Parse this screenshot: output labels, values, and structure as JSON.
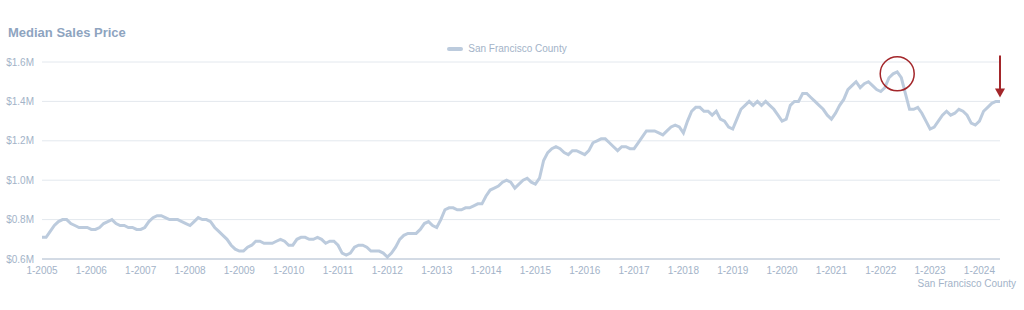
{
  "chart_data": {
    "type": "line",
    "title": "Median Sales Price",
    "x_label": "San Francisco County",
    "legend": "top",
    "grid": true,
    "categories": [
      "1-2005",
      null,
      null,
      null,
      null,
      null,
      null,
      null,
      null,
      null,
      null,
      null,
      "1-2006",
      null,
      null,
      null,
      null,
      null,
      null,
      null,
      null,
      null,
      null,
      null,
      "1-2007",
      null,
      null,
      null,
      null,
      null,
      null,
      null,
      null,
      null,
      null,
      null,
      "1-2008",
      null,
      null,
      null,
      null,
      null,
      null,
      null,
      null,
      null,
      null,
      null,
      "1-2009",
      null,
      null,
      null,
      null,
      null,
      null,
      null,
      null,
      null,
      null,
      null,
      "1-2010",
      null,
      null,
      null,
      null,
      null,
      null,
      null,
      null,
      null,
      null,
      null,
      "1-2011",
      null,
      null,
      null,
      null,
      null,
      null,
      null,
      null,
      null,
      null,
      null,
      "1-2012",
      null,
      null,
      null,
      null,
      null,
      null,
      null,
      null,
      null,
      null,
      null,
      "1-2013",
      null,
      null,
      null,
      null,
      null,
      null,
      null,
      null,
      null,
      null,
      null,
      "1-2014",
      null,
      null,
      null,
      null,
      null,
      null,
      null,
      null,
      null,
      null,
      null,
      "1-2015",
      null,
      null,
      null,
      null,
      null,
      null,
      null,
      null,
      null,
      null,
      null,
      "1-2016",
      null,
      null,
      null,
      null,
      null,
      null,
      null,
      null,
      null,
      null,
      null,
      "1-2017",
      null,
      null,
      null,
      null,
      null,
      null,
      null,
      null,
      null,
      null,
      null,
      "1-2018",
      null,
      null,
      null,
      null,
      null,
      null,
      null,
      null,
      null,
      null,
      null,
      "1-2019",
      null,
      null,
      null,
      null,
      null,
      null,
      null,
      null,
      null,
      null,
      null,
      "1-2020",
      null,
      null,
      null,
      null,
      null,
      null,
      null,
      null,
      null,
      null,
      null,
      "1-2021",
      null,
      null,
      null,
      null,
      null,
      null,
      null,
      null,
      null,
      null,
      null,
      "1-2022",
      null,
      null,
      null,
      null,
      null,
      null,
      null,
      null,
      null,
      null,
      null,
      "1-2023",
      null,
      null,
      null,
      null,
      null,
      null,
      null,
      null,
      null,
      null,
      null,
      "1-2024",
      null,
      null,
      null,
      null,
      null
    ],
    "series": [
      {
        "name": "San Francisco County",
        "color": "#bccbdd",
        "values": [
          0.71,
          0.71,
          0.74,
          0.77,
          0.79,
          0.8,
          0.8,
          0.78,
          0.77,
          0.76,
          0.76,
          0.76,
          0.75,
          0.75,
          0.76,
          0.78,
          0.79,
          0.8,
          0.78,
          0.77,
          0.77,
          0.76,
          0.76,
          0.75,
          0.75,
          0.76,
          0.79,
          0.81,
          0.82,
          0.82,
          0.81,
          0.8,
          0.8,
          0.8,
          0.79,
          0.78,
          0.77,
          0.79,
          0.81,
          0.8,
          0.8,
          0.79,
          0.76,
          0.74,
          0.72,
          0.7,
          0.67,
          0.65,
          0.64,
          0.64,
          0.66,
          0.67,
          0.69,
          0.69,
          0.68,
          0.68,
          0.68,
          0.69,
          0.7,
          0.69,
          0.67,
          0.67,
          0.7,
          0.71,
          0.71,
          0.7,
          0.7,
          0.71,
          0.7,
          0.68,
          0.69,
          0.69,
          0.67,
          0.63,
          0.62,
          0.63,
          0.66,
          0.67,
          0.67,
          0.66,
          0.64,
          0.64,
          0.64,
          0.63,
          0.61,
          0.63,
          0.66,
          0.7,
          0.72,
          0.73,
          0.73,
          0.73,
          0.75,
          0.78,
          0.79,
          0.77,
          0.76,
          0.8,
          0.85,
          0.86,
          0.86,
          0.85,
          0.85,
          0.86,
          0.86,
          0.87,
          0.88,
          0.88,
          0.92,
          0.95,
          0.96,
          0.97,
          0.99,
          1.0,
          0.99,
          0.96,
          0.98,
          1.0,
          1.01,
          0.99,
          0.98,
          1.01,
          1.1,
          1.14,
          1.16,
          1.17,
          1.16,
          1.14,
          1.13,
          1.15,
          1.15,
          1.14,
          1.13,
          1.15,
          1.19,
          1.2,
          1.21,
          1.21,
          1.19,
          1.17,
          1.15,
          1.17,
          1.17,
          1.16,
          1.16,
          1.19,
          1.22,
          1.25,
          1.25,
          1.25,
          1.24,
          1.23,
          1.25,
          1.27,
          1.28,
          1.27,
          1.24,
          1.3,
          1.35,
          1.37,
          1.37,
          1.35,
          1.35,
          1.33,
          1.35,
          1.31,
          1.3,
          1.27,
          1.26,
          1.31,
          1.36,
          1.38,
          1.4,
          1.38,
          1.4,
          1.38,
          1.4,
          1.38,
          1.36,
          1.33,
          1.3,
          1.31,
          1.38,
          1.4,
          1.4,
          1.44,
          1.44,
          1.42,
          1.4,
          1.38,
          1.36,
          1.33,
          1.31,
          1.34,
          1.38,
          1.41,
          1.46,
          1.48,
          1.5,
          1.47,
          1.49,
          1.5,
          1.48,
          1.46,
          1.45,
          1.47,
          1.52,
          1.54,
          1.55,
          1.52,
          1.44,
          1.36,
          1.36,
          1.37,
          1.34,
          1.3,
          1.26,
          1.27,
          1.3,
          1.33,
          1.35,
          1.33,
          1.34,
          1.36,
          1.35,
          1.33,
          1.29,
          1.28,
          1.3,
          1.35,
          1.37,
          1.39,
          1.4,
          1.4
        ]
      }
    ],
    "ylim": [
      0.6,
      1.6
    ],
    "yticks": [
      {
        "value": 0.6,
        "label": "$0.6M"
      },
      {
        "value": 0.8,
        "label": "$0.8M"
      },
      {
        "value": 1.0,
        "label": "$1.0M"
      },
      {
        "value": 1.2,
        "label": "$1.2M"
      },
      {
        "value": 1.4,
        "label": "$1.4M"
      },
      {
        "value": 1.6,
        "label": "$1.6M"
      }
    ]
  }
}
